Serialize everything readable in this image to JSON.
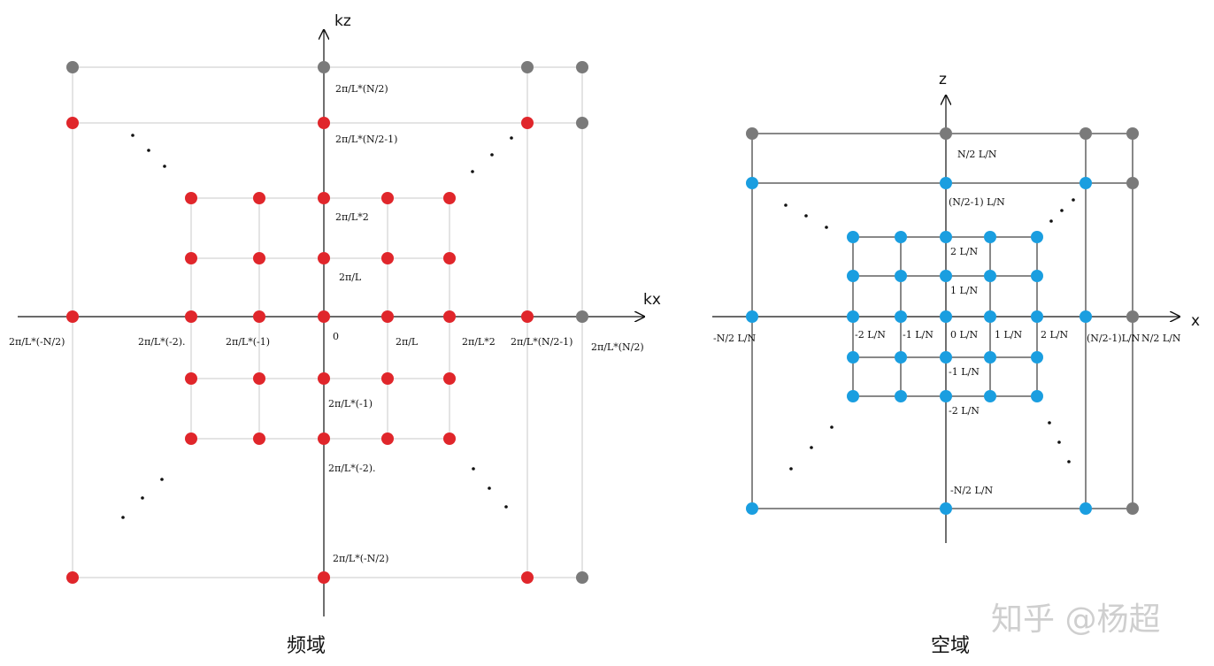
{
  "colors": {
    "freq_dot": "#e0262b",
    "space_dot": "#1a9ee0",
    "edge_dot": "#7a7a7a",
    "freq_grid": "#c8c8c8",
    "space_grid": "#111111"
  },
  "freq": {
    "axis_x": "kx",
    "axis_z": "kz",
    "caption": "频域",
    "x_labels": [
      "2π/L*(-N/2)",
      "2π/L*(-2).",
      "2π/L*(-1)",
      "0",
      "2π/L",
      "2π/L*2",
      "2π/L*(N/2-1)",
      "2π/L*(N/2)"
    ],
    "z_labels": [
      "2π/L*(N/2)",
      "2π/L*(N/2-1)",
      "2π/L*2",
      "2π/L",
      "2π/L*(-1)",
      "2π/L*(-2).",
      "2π/L*(-N/2)"
    ]
  },
  "space": {
    "axis_x": "x",
    "axis_z": "z",
    "caption": "空域",
    "x_labels": [
      "-N/2 L/N",
      "-2 L/N",
      "-1 L/N",
      "0 L/N",
      "1 L/N",
      "2 L/N",
      "(N/2-1)L/N",
      "N/2 L/N"
    ],
    "z_labels": [
      "N/2 L/N",
      "(N/2-1) L/N",
      "2 L/N",
      "1 L/N",
      "-1 L/N",
      "-2 L/N",
      "-N/2 L/N"
    ]
  },
  "watermark": "知乎 @杨超"
}
